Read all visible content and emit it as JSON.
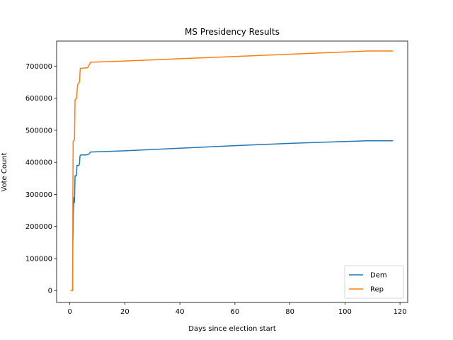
{
  "chart_data": {
    "type": "line",
    "title": "MS Presidency Results",
    "xlabel": "Days since election start",
    "ylabel": "Vote Count",
    "xlim": [
      -4.8,
      122.8
    ],
    "ylim": [
      -37000,
      778000
    ],
    "xticks": [
      0,
      20,
      40,
      60,
      80,
      100,
      120
    ],
    "yticks": [
      0,
      100000,
      200000,
      300000,
      400000,
      500000,
      600000,
      700000
    ],
    "grid": false,
    "legend": "bottom-right",
    "series": [
      {
        "name": "Dem",
        "color": "#1f77b4",
        "points": [
          [
            0.3,
            0
          ],
          [
            1.0,
            0
          ],
          [
            1.1,
            150000
          ],
          [
            1.3,
            250000
          ],
          [
            1.5,
            290000
          ],
          [
            1.7,
            275000
          ],
          [
            1.9,
            358000
          ],
          [
            2.4,
            358000
          ],
          [
            2.6,
            390000
          ],
          [
            3.3,
            390000
          ],
          [
            3.5,
            395000
          ],
          [
            3.7,
            420000
          ],
          [
            4.0,
            423000
          ],
          [
            6.0,
            423000
          ],
          [
            7.0,
            426000
          ],
          [
            7.5,
            432000
          ],
          [
            20,
            436000
          ],
          [
            40,
            444000
          ],
          [
            60,
            452000
          ],
          [
            80,
            459000
          ],
          [
            100,
            465000
          ],
          [
            108,
            467000
          ],
          [
            117.5,
            467000
          ]
        ]
      },
      {
        "name": "Rep",
        "color": "#ff7f0e",
        "points": [
          [
            0.3,
            0
          ],
          [
            1.0,
            0
          ],
          [
            1.1,
            280000
          ],
          [
            1.2,
            465000
          ],
          [
            1.7,
            470000
          ],
          [
            1.9,
            596000
          ],
          [
            2.4,
            598000
          ],
          [
            2.6,
            620000
          ],
          [
            2.9,
            643000
          ],
          [
            3.3,
            648000
          ],
          [
            3.5,
            650000
          ],
          [
            3.8,
            693000
          ],
          [
            6.5,
            695000
          ],
          [
            7.0,
            703000
          ],
          [
            7.5,
            712000
          ],
          [
            20,
            716000
          ],
          [
            40,
            723000
          ],
          [
            60,
            730000
          ],
          [
            80,
            737000
          ],
          [
            100,
            744000
          ],
          [
            108,
            747000
          ],
          [
            117.5,
            747000
          ]
        ]
      }
    ]
  }
}
